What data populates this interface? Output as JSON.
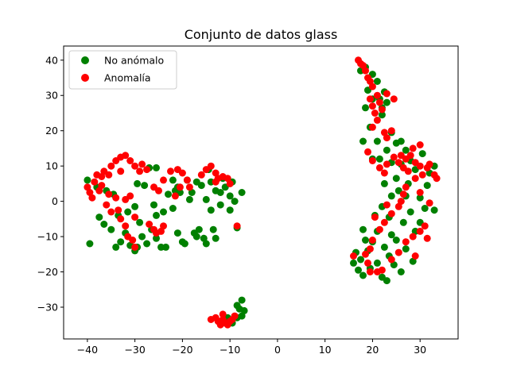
{
  "chart_data": {
    "type": "scatter",
    "title": "Conjunto de datos glass",
    "xlabel": "",
    "ylabel": "",
    "xlim": [
      -45,
      38
    ],
    "ylim": [
      -39,
      44
    ],
    "xticks": [
      -40,
      -30,
      -20,
      -10,
      0,
      10,
      20,
      30
    ],
    "yticks": [
      -30,
      -20,
      -10,
      0,
      10,
      20,
      30,
      40
    ],
    "xtick_labels": [
      "−40",
      "−30",
      "−20",
      "−10",
      "0",
      "10",
      "20",
      "30"
    ],
    "ytick_labels": [
      "−30",
      "−20",
      "−10",
      "0",
      "10",
      "20",
      "30",
      "40"
    ],
    "legend_position": "top-left",
    "grid": false,
    "series": [
      {
        "name": "No anómalo",
        "color": "#008000",
        "points": [
          [
            -39.5,
            -12
          ],
          [
            -40,
            6
          ],
          [
            -38,
            4
          ],
          [
            -37.5,
            -4.5
          ],
          [
            -36.5,
            -6.5
          ],
          [
            -36,
            3
          ],
          [
            -35,
            -8
          ],
          [
            -34,
            -13
          ],
          [
            -33,
            -11.5
          ],
          [
            -34.5,
            2
          ],
          [
            -33.5,
            -4
          ],
          [
            -32,
            -9
          ],
          [
            -31,
            -12.5
          ],
          [
            -30,
            -14
          ],
          [
            -29.5,
            -13
          ],
          [
            -31.5,
            -3
          ],
          [
            -30,
            -1.5
          ],
          [
            -29,
            -6
          ],
          [
            -28.5,
            -10
          ],
          [
            -27.5,
            -12
          ],
          [
            -28,
            4.5
          ],
          [
            -29.5,
            5
          ],
          [
            -27,
            9.5
          ],
          [
            -25.5,
            9.5
          ],
          [
            -26,
            -1
          ],
          [
            -25.5,
            -4
          ],
          [
            -26.5,
            -8
          ],
          [
            -25.5,
            -10.5
          ],
          [
            -24.5,
            -13
          ],
          [
            -23.5,
            -13
          ],
          [
            -24,
            -3
          ],
          [
            -23,
            2
          ],
          [
            -22,
            6
          ],
          [
            -21.5,
            3
          ],
          [
            -22,
            -2
          ],
          [
            -21,
            -9
          ],
          [
            -20,
            -11.5
          ],
          [
            -19.5,
            -12
          ],
          [
            -20.5,
            2.5
          ],
          [
            -18.5,
            0.5
          ],
          [
            -18,
            2.5
          ],
          [
            -17.5,
            -9
          ],
          [
            -17,
            -10
          ],
          [
            -16.5,
            -8
          ],
          [
            -15.5,
            -10.5
          ],
          [
            -15,
            -12
          ],
          [
            -16,
            4.5
          ],
          [
            -15,
            0.5
          ],
          [
            -14,
            -2.5
          ],
          [
            -13.5,
            -8
          ],
          [
            -13,
            -10.5
          ],
          [
            -14,
            5.5
          ],
          [
            -13,
            3
          ],
          [
            -12,
            2.5
          ],
          [
            -11.5,
            6.5
          ],
          [
            -11,
            4
          ],
          [
            -10,
            1.5
          ],
          [
            -10,
            -2.5
          ],
          [
            -9.5,
            5.5
          ],
          [
            -9,
            0
          ],
          [
            -8.5,
            -7.5
          ],
          [
            -7.5,
            2.5
          ],
          [
            -17,
            5.5
          ],
          [
            -19,
            6
          ],
          [
            -21,
            4
          ],
          [
            -12,
            -1
          ],
          [
            -14.5,
            9
          ],
          [
            -8,
            -30.5
          ],
          [
            -7.5,
            -28
          ],
          [
            -7,
            -31
          ],
          [
            -8.5,
            -33
          ],
          [
            -9.5,
            -34.5
          ],
          [
            -10.5,
            -33
          ],
          [
            -7.5,
            -32.5
          ],
          [
            -8.5,
            -29.5
          ],
          [
            16,
            -17.5
          ],
          [
            16.5,
            -14.5
          ],
          [
            17,
            -19.5
          ],
          [
            17.5,
            -16.5
          ],
          [
            18,
            -8
          ],
          [
            18.5,
            -11
          ],
          [
            18,
            -21
          ],
          [
            19,
            -14
          ],
          [
            19.5,
            -19
          ],
          [
            20,
            -11.5
          ],
          [
            20.5,
            -4
          ],
          [
            21,
            -8.5
          ],
          [
            21,
            -17.5
          ],
          [
            22,
            -1.5
          ],
          [
            22,
            -21.5
          ],
          [
            22.5,
            -13
          ],
          [
            23,
            -22.5
          ],
          [
            23.5,
            -4.5
          ],
          [
            23.5,
            -15.5
          ],
          [
            24,
            1.5
          ],
          [
            24,
            -9.5
          ],
          [
            24.5,
            -18
          ],
          [
            25,
            -11
          ],
          [
            25.5,
            3
          ],
          [
            26,
            -20
          ],
          [
            26.5,
            -6
          ],
          [
            27,
            1.5
          ],
          [
            27,
            -13.5
          ],
          [
            28,
            -3
          ],
          [
            28.5,
            -17
          ],
          [
            29,
            -8.5
          ],
          [
            30,
            -6
          ],
          [
            30,
            1
          ],
          [
            31,
            -2
          ],
          [
            31.5,
            4.5
          ],
          [
            33,
            -2.5
          ],
          [
            32,
            8
          ],
          [
            33,
            10
          ],
          [
            30.5,
            13.5
          ],
          [
            29,
            9
          ],
          [
            28,
            11.5
          ],
          [
            27.5,
            5
          ],
          [
            26,
            10.5
          ],
          [
            25,
            6.5
          ],
          [
            24,
            11
          ],
          [
            23,
            14.5
          ],
          [
            22.5,
            5
          ],
          [
            21.5,
            12
          ],
          [
            21,
            17
          ],
          [
            20,
            12
          ],
          [
            19.5,
            21
          ],
          [
            18,
            17
          ],
          [
            18.5,
            26.5
          ],
          [
            19,
            31.5
          ],
          [
            20,
            36
          ],
          [
            21,
            34
          ],
          [
            21.5,
            29
          ],
          [
            22,
            24.5
          ],
          [
            22.5,
            31
          ],
          [
            23,
            28
          ],
          [
            24,
            19.5
          ],
          [
            25,
            16.5
          ],
          [
            26,
            17
          ],
          [
            27,
            14.5
          ],
          [
            22,
            26.5
          ],
          [
            20,
            29
          ],
          [
            18.5,
            38
          ],
          [
            17.5,
            37
          ]
        ]
      },
      {
        "name": "Anomalía",
        "color": "#ff0000",
        "points": [
          [
            -40,
            4
          ],
          [
            -39.5,
            2.5
          ],
          [
            -38.5,
            5.5
          ],
          [
            -38,
            7.5
          ],
          [
            -37,
            7
          ],
          [
            -36.5,
            8.5
          ],
          [
            -35.5,
            7.5
          ],
          [
            -39,
            1
          ],
          [
            -37.5,
            3
          ],
          [
            -36,
            -1
          ],
          [
            -35,
            -3
          ],
          [
            -35.5,
            2
          ],
          [
            -34,
            1
          ],
          [
            -33.5,
            -2.5
          ],
          [
            -33,
            -5
          ],
          [
            -32,
            -7
          ],
          [
            -31.5,
            -10
          ],
          [
            -30.5,
            -11
          ],
          [
            -30,
            -13
          ],
          [
            -31,
            1.5
          ],
          [
            -32,
            0.5
          ],
          [
            -30,
            -4.5
          ],
          [
            -35,
            10
          ],
          [
            -34,
            11.5
          ],
          [
            -33,
            12.5
          ],
          [
            -32,
            13
          ],
          [
            -31,
            11.5
          ],
          [
            -30,
            10
          ],
          [
            -29,
            8.5
          ],
          [
            -28.5,
            10.5
          ],
          [
            -27.5,
            9
          ],
          [
            -27,
            -6.5
          ],
          [
            -26,
            -8
          ],
          [
            -25.5,
            -9
          ],
          [
            -24.5,
            -8.5
          ],
          [
            -24,
            -7
          ],
          [
            -25,
            3
          ],
          [
            -24,
            6
          ],
          [
            -22.5,
            8.5
          ],
          [
            -21,
            9
          ],
          [
            -20,
            8
          ],
          [
            -19,
            6
          ],
          [
            -18.5,
            4
          ],
          [
            -20.5,
            4
          ],
          [
            -16,
            7.5
          ],
          [
            -15,
            9
          ],
          [
            -14,
            10
          ],
          [
            -13,
            8
          ],
          [
            -12.5,
            6.5
          ],
          [
            -11.5,
            7
          ],
          [
            -10.5,
            6.5
          ],
          [
            -10,
            5
          ],
          [
            -8.5,
            -7
          ],
          [
            -13,
            5.5
          ],
          [
            -21.5,
            1.5
          ],
          [
            -26,
            4
          ],
          [
            -37,
            4.5
          ],
          [
            -33,
            8.5
          ],
          [
            -14,
            -33.5
          ],
          [
            -13,
            -33
          ],
          [
            -12.5,
            -34
          ],
          [
            -11.5,
            -33.5
          ],
          [
            -11,
            -34.5
          ],
          [
            -10.5,
            -35
          ],
          [
            -10,
            -34
          ],
          [
            -9.5,
            -33.5
          ],
          [
            -9,
            -32.5
          ],
          [
            -11.5,
            -32
          ],
          [
            -12,
            -35
          ],
          [
            17,
            40
          ],
          [
            17.5,
            39
          ],
          [
            18,
            38.5
          ],
          [
            18.5,
            37
          ],
          [
            19,
            35
          ],
          [
            19.5,
            34
          ],
          [
            20,
            32.5
          ],
          [
            19.5,
            29
          ],
          [
            20,
            27
          ],
          [
            20.5,
            25
          ],
          [
            21,
            30
          ],
          [
            21.5,
            28
          ],
          [
            22,
            26
          ],
          [
            21,
            23
          ],
          [
            20,
            21
          ],
          [
            22.5,
            19.5
          ],
          [
            23,
            18
          ],
          [
            24,
            20
          ],
          [
            23,
            30.5
          ],
          [
            24.5,
            29
          ],
          [
            19,
            14
          ],
          [
            20,
            11.5
          ],
          [
            21.5,
            9.5
          ],
          [
            22.5,
            8
          ],
          [
            23,
            10.5
          ],
          [
            24.5,
            12.5
          ],
          [
            26,
            13
          ],
          [
            27,
            12
          ],
          [
            28,
            13
          ],
          [
            29,
            11
          ],
          [
            30,
            10
          ],
          [
            30.5,
            7.5
          ],
          [
            31.5,
            9.5
          ],
          [
            32,
            10.5
          ],
          [
            33,
            7.5
          ],
          [
            33.5,
            6.5
          ],
          [
            29,
            6.5
          ],
          [
            27.5,
            8.5
          ],
          [
            26.5,
            9.5
          ],
          [
            25.5,
            11
          ],
          [
            28.5,
            15
          ],
          [
            30,
            16
          ],
          [
            27,
            4
          ],
          [
            26.5,
            2
          ],
          [
            26,
            0
          ],
          [
            25.5,
            -1.5
          ],
          [
            24,
            -3.5
          ],
          [
            22.5,
            -6
          ],
          [
            21.5,
            -8
          ],
          [
            20,
            -11
          ],
          [
            19.5,
            -13.5
          ],
          [
            18.5,
            -15
          ],
          [
            19,
            -17.5
          ],
          [
            19.5,
            -20
          ],
          [
            21,
            -20
          ],
          [
            22,
            -19.5
          ],
          [
            24,
            -16.5
          ],
          [
            25.5,
            -14.5
          ],
          [
            27,
            -11.5
          ],
          [
            28.5,
            -10
          ],
          [
            30,
            -8.5
          ],
          [
            31,
            -7
          ],
          [
            31.5,
            -10.5
          ],
          [
            29,
            -15.5
          ],
          [
            16,
            -15.5
          ],
          [
            20.5,
            -4.5
          ],
          [
            23,
            -1
          ],
          [
            30,
            2.5
          ],
          [
            32,
            -0.5
          ]
        ]
      }
    ]
  }
}
